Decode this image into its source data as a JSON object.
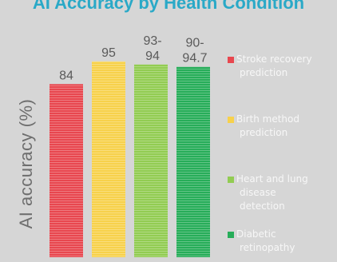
{
  "chart_data": {
    "type": "bar",
    "title": "AI Accuracy by Health Condition",
    "ylabel": "AI accuracy (%)",
    "ylim": [
      0,
      100
    ],
    "grid": false,
    "legend_position": "right",
    "categories": [
      "Stroke recovery prediction",
      "Birth method prediction",
      "Heart and lung disease detection",
      "Diabetic retinopathy"
    ],
    "values": [
      84,
      95,
      93.5,
      92.35
    ],
    "data_labels": [
      [
        "84"
      ],
      [
        "95"
      ],
      [
        "93-",
        "94"
      ],
      [
        "90-",
        "94.7"
      ]
    ],
    "colors": [
      "#e8474f",
      "#f7d14b",
      "#92cc52",
      "#27ad59"
    ],
    "legend": [
      {
        "label": "Stroke recovery prediction",
        "lines": [
          "Stroke recovery",
          "prediction"
        ]
      },
      {
        "label": "Birth method prediction",
        "lines": [
          "Birth method",
          "prediction"
        ]
      },
      {
        "label": "Heart and lung disease detection",
        "lines": [
          "Heart and lung",
          "disease",
          "detection"
        ]
      },
      {
        "label": "Diabetic retinopathy",
        "lines": [
          "Diabetic",
          "retinopathy"
        ]
      }
    ]
  }
}
